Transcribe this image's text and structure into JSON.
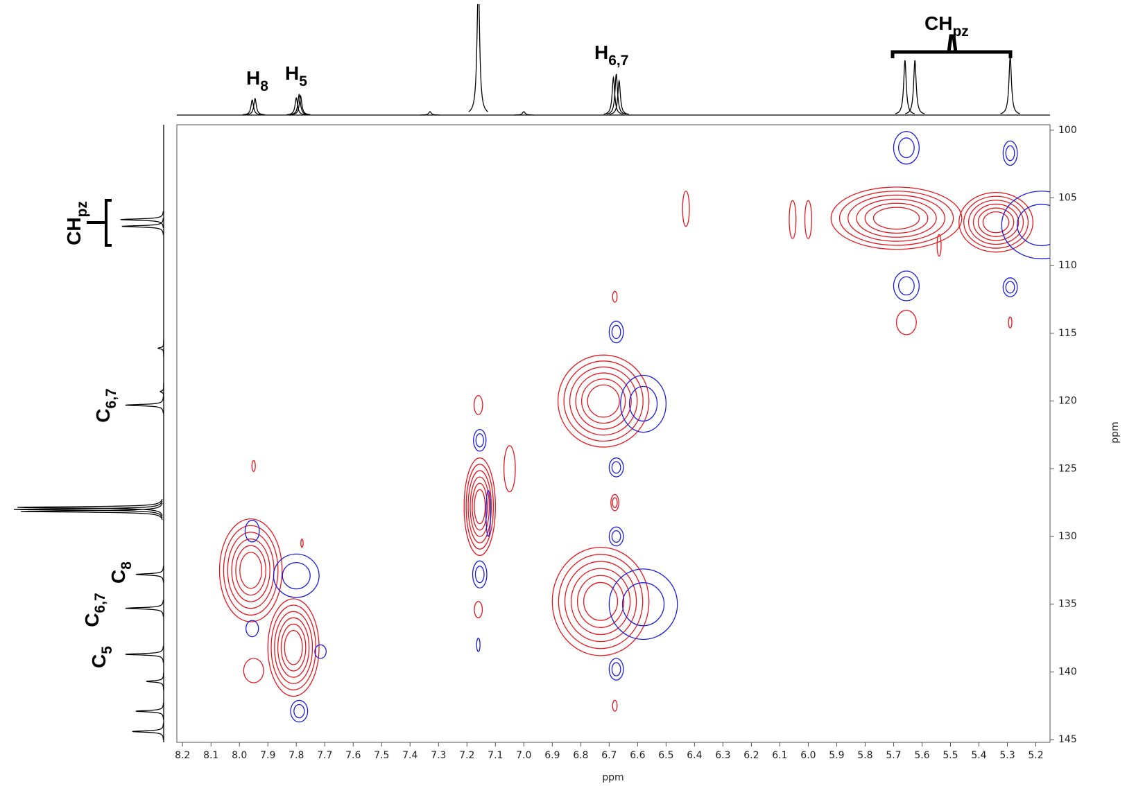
{
  "chart_data": {
    "type": "contour",
    "x_label": "ppm",
    "y_label": "ppm",
    "xlim": [
      8.22,
      5.15
    ],
    "ylim": [
      99.6,
      145.2
    ],
    "xticks": [
      8.2,
      8.1,
      {
        "value": 8,
        "label": "8.0"
      },
      7.9,
      7.8,
      7.7,
      7.6,
      7.5,
      7.4,
      7.3,
      7.2,
      7.1,
      {
        "value": 7,
        "label": "7.0"
      },
      6.9,
      6.8,
      6.7,
      6.6,
      6.5,
      6.4,
      6.3,
      6.2,
      6.1,
      {
        "value": 6,
        "label": "6.0"
      },
      5.9,
      5.8,
      5.7,
      5.6,
      5.5,
      5.4,
      5.3,
      5.2
    ],
    "yticks": [
      100,
      105,
      110,
      115,
      120,
      125,
      130,
      135,
      140,
      145
    ],
    "series": [
      {
        "color": "#e8141c",
        "x": [
          7.96,
          7.81,
          7.155,
          6.72,
          6.73,
          5.69,
          5.34,
          6.055,
          6.0,
          6.43,
          7.05,
          7.95,
          7.78,
          7.16,
          7.16,
          6.68,
          6.68,
          6.68,
          5.655,
          5.29,
          7.95,
          5.54
        ],
        "y": [
          132.5,
          138.2,
          127.8,
          120,
          134.8,
          106.5,
          106.8,
          106.6,
          106.6,
          105.8,
          125,
          124.8,
          130.5,
          120.3,
          135.4,
          112.3,
          127.5,
          142.5,
          114.2,
          114.2,
          139.9,
          108.5
        ],
        "x_width": [
          0.11,
          0.09,
          0.055,
          0.16,
          0.17,
          0.23,
          0.13,
          0.012,
          0.012,
          0.012,
          0.02,
          0.006,
          0.004,
          0.015,
          0.014,
          0.008,
          0.014,
          0.008,
          0.035,
          0.006,
          0.035,
          0.007
        ],
        "y_width": [
          3.8,
          3.6,
          3.6,
          3.4,
          4,
          2.3,
          2.2,
          1.4,
          1.4,
          1.3,
          1.7,
          0.4,
          0.3,
          0.7,
          0.6,
          0.4,
          0.6,
          0.4,
          0.9,
          0.4,
          0.9,
          0.8
        ],
        "levels": [
          6,
          6,
          6,
          6,
          6,
          6,
          6,
          1,
          1,
          1,
          1,
          1,
          1,
          1,
          1,
          1,
          2,
          1,
          1,
          1,
          1,
          1
        ]
      },
      {
        "color": "#1a1ae0",
        "x": [
          5.655,
          5.655,
          5.29,
          5.29,
          5.18,
          7.955,
          7.955,
          7.8,
          7.715,
          7.79,
          7.155,
          7.155,
          7.16,
          7.125,
          6.675,
          6.675,
          6.675,
          6.675,
          6.58,
          6.58
        ],
        "y": [
          101.3,
          111.5,
          101.7,
          111.6,
          107,
          129.6,
          136.8,
          132.9,
          138.5,
          142.9,
          122.9,
          132.8,
          138,
          128.3,
          114.9,
          124.9,
          130,
          139.8,
          120.2,
          135
        ],
        "x_width": [
          0.045,
          0.045,
          0.025,
          0.025,
          0.14,
          0.025,
          0.022,
          0.08,
          0.02,
          0.03,
          0.022,
          0.025,
          0.006,
          0.008,
          0.025,
          0.025,
          0.025,
          0.025,
          0.08,
          0.12
        ],
        "y_width": [
          1.2,
          1.1,
          0.9,
          0.7,
          2.5,
          0.8,
          0.6,
          1.6,
          0.5,
          0.8,
          0.8,
          1,
          0.5,
          1.7,
          0.8,
          0.7,
          0.7,
          0.8,
          2.1,
          2.6
        ],
        "levels": [
          2,
          2,
          2,
          2,
          2,
          1,
          1,
          2,
          1,
          2,
          2,
          2,
          1,
          1,
          2,
          2,
          2,
          2,
          2,
          2
        ]
      }
    ],
    "top_trace": {
      "intensity_lim": [
        0,
        160
      ],
      "x": [
        7.955,
        7.945,
        7.8,
        7.79,
        7.785,
        7.33,
        7.16,
        7.0,
        6.685,
        6.675,
        6.665,
        5.66,
        5.625,
        5.29
      ],
      "intensity": [
        22,
        24,
        25,
        30,
        28,
        5,
        200,
        5,
        55,
        60,
        50,
        80,
        80,
        85
      ]
    },
    "left_trace": {
      "intensity_lim": [
        0,
        220
      ],
      "y": [
        106.6,
        107.1,
        116.1,
        119.3,
        120.3,
        127.85,
        128,
        128.15,
        132.8,
        135.3,
        138.7,
        140.7,
        142.9,
        144.4
      ],
      "intensity": [
        62,
        60,
        8,
        5,
        55,
        210,
        215,
        205,
        40,
        55,
        55,
        25,
        40,
        45
      ]
    },
    "top_labels": [
      {
        "text": "H",
        "sub": "8"
      },
      {
        "text": "H",
        "sub": "5"
      },
      {
        "text": "H",
        "sub": "6,7"
      },
      {
        "text": "CH",
        "sub": "pz"
      }
    ],
    "left_labels": [
      {
        "text": "CH",
        "sub": "pz"
      },
      {
        "text": "C",
        "sub": "6,7"
      },
      {
        "text": "C",
        "sub": "8"
      },
      {
        "text": "C",
        "sub": "6,7"
      },
      {
        "text": "C",
        "sub": "5"
      }
    ]
  }
}
